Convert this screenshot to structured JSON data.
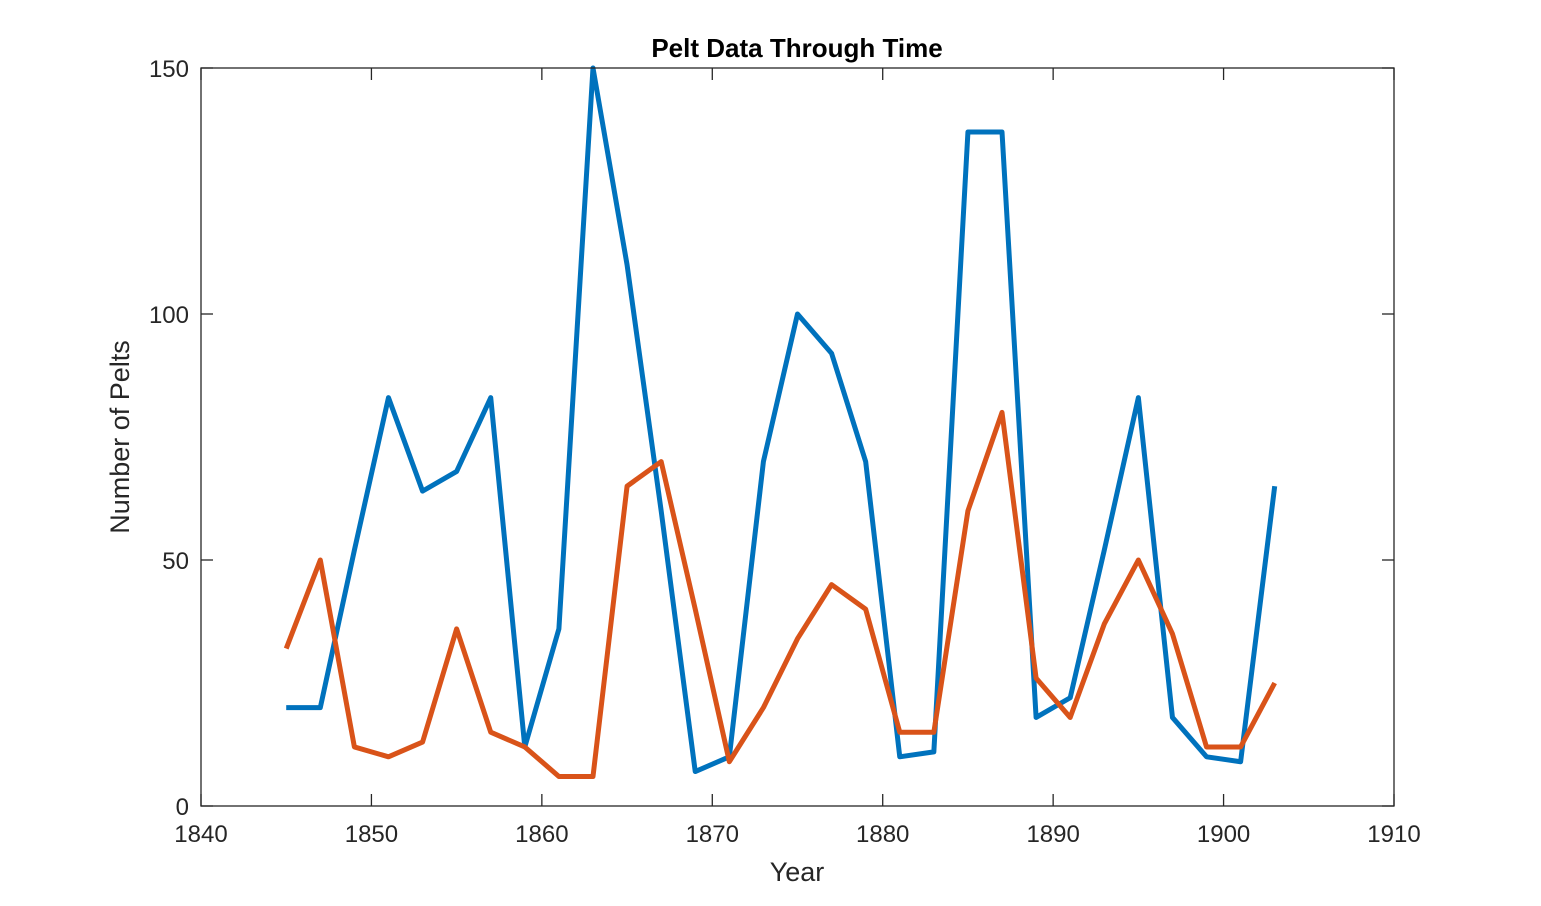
{
  "chart_data": {
    "type": "line",
    "title": "Pelt Data Through Time",
    "xlabel": "Year",
    "ylabel": "Number of Pelts",
    "xlim": [
      1840,
      1910
    ],
    "ylim": [
      0,
      150
    ],
    "xticks": [
      1840,
      1850,
      1860,
      1870,
      1880,
      1890,
      1900,
      1910
    ],
    "yticks": [
      0,
      50,
      100,
      150
    ],
    "xtick_labels": [
      "1840",
      "1850",
      "1860",
      "1870",
      "1880",
      "1890",
      "1900",
      "1910"
    ],
    "ytick_labels": [
      "0",
      "50",
      "100",
      "150"
    ],
    "grid": false,
    "x": [
      1845,
      1847,
      1849,
      1851,
      1853,
      1855,
      1857,
      1859,
      1861,
      1863,
      1865,
      1867,
      1869,
      1871,
      1873,
      1875,
      1877,
      1879,
      1881,
      1883,
      1885,
      1887,
      1889,
      1891,
      1893,
      1895,
      1897,
      1899,
      1901,
      1903
    ],
    "series": [
      {
        "color": "#0072BD",
        "values": [
          20,
          20,
          52,
          83,
          64,
          68,
          83,
          12,
          36,
          150,
          110,
          60,
          7,
          10,
          70,
          100,
          92,
          70,
          10,
          11,
          137,
          137,
          18,
          22,
          52,
          83,
          18,
          10,
          9,
          65
        ]
      },
      {
        "color": "#D95319",
        "values": [
          32,
          50,
          12,
          10,
          13,
          36,
          15,
          12,
          6,
          6,
          65,
          70,
          40,
          9,
          20,
          34,
          45,
          40,
          15,
          15,
          60,
          80,
          26,
          18,
          37,
          50,
          35,
          12,
          12,
          25
        ]
      }
    ]
  }
}
